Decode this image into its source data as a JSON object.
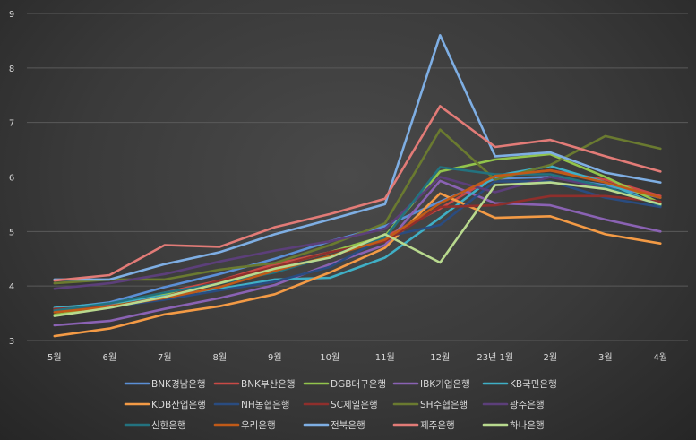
{
  "chart_data": {
    "type": "line",
    "categories": [
      "5월",
      "6월",
      "7월",
      "8월",
      "9월",
      "10월",
      "11월",
      "12월",
      "23년 1월",
      "2월",
      "3월",
      "4월"
    ],
    "ylim": [
      3,
      9
    ],
    "yticks": [
      "3",
      "4",
      "5",
      "6",
      "7",
      "8",
      "9"
    ],
    "grid": true,
    "legend_position": "bottom",
    "series": [
      {
        "name": "BNK경남은행",
        "color": "#5b8fd6",
        "values": [
          3.58,
          3.7,
          3.98,
          4.22,
          4.5,
          4.82,
          5.1,
          5.55,
          5.97,
          6.0,
          5.85,
          5.62
        ]
      },
      {
        "name": "BNK부산은행",
        "color": "#c94a46",
        "values": [
          3.56,
          3.65,
          3.88,
          4.1,
          4.4,
          4.62,
          4.9,
          5.42,
          6.02,
          6.12,
          5.95,
          5.65
        ]
      },
      {
        "name": "DGB대구은행",
        "color": "#92c44c",
        "values": [
          3.47,
          3.62,
          3.85,
          4.07,
          4.35,
          4.62,
          4.92,
          6.1,
          6.32,
          6.42,
          6.0,
          5.52
        ]
      },
      {
        "name": "IBK기업은행",
        "color": "#8a62b3",
        "values": [
          3.28,
          3.36,
          3.58,
          3.78,
          4.02,
          4.4,
          4.75,
          5.93,
          5.52,
          5.48,
          5.22,
          5.0
        ]
      },
      {
        "name": "KB국민은행",
        "color": "#3fafc6",
        "values": [
          3.6,
          3.68,
          3.82,
          3.95,
          4.12,
          4.15,
          4.52,
          5.25,
          6.02,
          6.2,
          5.9,
          5.47
        ]
      },
      {
        "name": "KDB산업은행",
        "color": "#f39a45",
        "values": [
          3.08,
          3.22,
          3.48,
          3.63,
          3.85,
          4.25,
          4.7,
          5.7,
          5.25,
          5.28,
          4.95,
          4.78
        ]
      },
      {
        "name": "NH농협은행",
        "color": "#2a4c80",
        "values": [
          3.55,
          3.62,
          3.75,
          3.92,
          4.08,
          4.35,
          4.9,
          5.12,
          5.92,
          5.92,
          5.62,
          5.45
        ]
      },
      {
        "name": "SC제일은행",
        "color": "#8f2f2c",
        "values": [
          3.58,
          3.62,
          3.8,
          4.1,
          4.35,
          4.62,
          4.82,
          5.45,
          5.48,
          5.65,
          5.65,
          5.55
        ]
      },
      {
        "name": "SH수협은행",
        "color": "#6a7a30",
        "values": [
          4.05,
          4.12,
          4.12,
          4.3,
          4.42,
          4.75,
          5.15,
          6.87,
          5.95,
          6.22,
          6.75,
          6.52
        ]
      },
      {
        "name": "광주은행",
        "color": "#5c3f7a",
        "values": [
          3.95,
          4.05,
          4.22,
          4.45,
          4.65,
          4.82,
          5.05,
          6.0,
          5.72,
          6.0,
          5.8,
          5.5
        ]
      },
      {
        "name": "신한은행",
        "color": "#23727f",
        "values": [
          3.55,
          3.68,
          3.88,
          4.05,
          4.25,
          4.55,
          4.88,
          6.18,
          6.05,
          6.05,
          5.82,
          5.48
        ]
      },
      {
        "name": "우리은행",
        "color": "#c05a18",
        "values": [
          3.52,
          3.62,
          3.78,
          3.98,
          4.28,
          4.55,
          4.85,
          5.52,
          6.02,
          6.12,
          5.9,
          5.62
        ]
      },
      {
        "name": "전북은행",
        "color": "#7eaee3",
        "values": [
          4.12,
          4.12,
          4.4,
          4.62,
          4.95,
          5.22,
          5.5,
          8.6,
          6.38,
          6.45,
          6.08,
          5.9
        ]
      },
      {
        "name": "제주은행",
        "color": "#e27b77",
        "values": [
          4.1,
          4.2,
          4.75,
          4.72,
          5.08,
          5.32,
          5.6,
          7.3,
          6.55,
          6.68,
          6.38,
          6.1
        ]
      },
      {
        "name": "하나은행",
        "color": "#b8d98e",
        "values": [
          3.45,
          3.6,
          3.8,
          4.05,
          4.32,
          4.52,
          4.95,
          4.43,
          5.85,
          5.9,
          5.78,
          5.5
        ]
      }
    ]
  }
}
